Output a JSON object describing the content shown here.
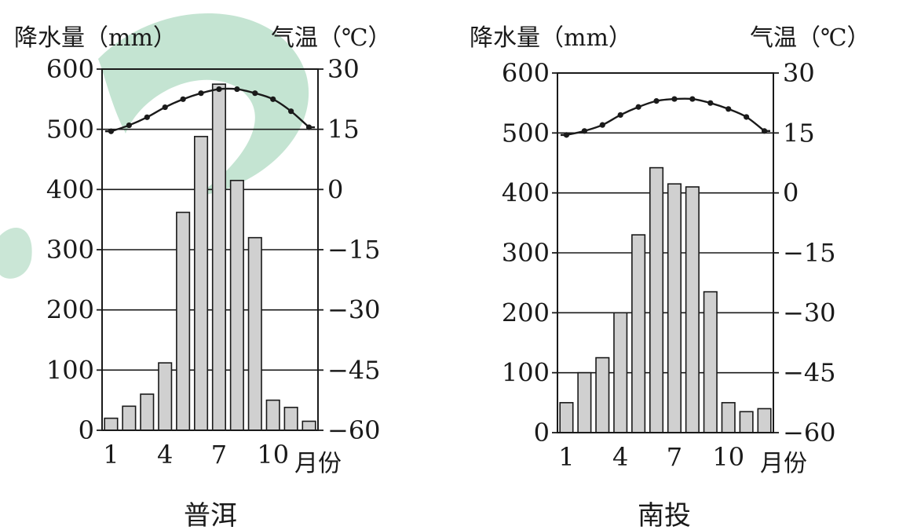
{
  "chart_data": [
    {
      "type": "bar",
      "title": "普洱",
      "y_left_label": "降水量（mm）",
      "y_right_label": "气温（℃）",
      "x_unit_label": "月份",
      "categories": [
        1,
        2,
        3,
        4,
        5,
        6,
        7,
        8,
        9,
        10,
        11,
        12
      ],
      "x_tick_labels": [
        "1",
        "4",
        "7",
        "10"
      ],
      "series": [
        {
          "name": "降水量",
          "kind": "bar",
          "axis": "left",
          "values": [
            20,
            40,
            60,
            112,
            362,
            488,
            575,
            415,
            320,
            50,
            38,
            15
          ]
        },
        {
          "name": "气温",
          "kind": "line",
          "axis": "right",
          "values": [
            14.5,
            16,
            18,
            20.5,
            22.5,
            24,
            25,
            25,
            24,
            22.5,
            19.5,
            15.5
          ]
        }
      ],
      "y_left": {
        "min": 0,
        "max": 600,
        "ticks": [
          "0",
          "100",
          "200",
          "300",
          "400",
          "500",
          "600"
        ]
      },
      "y_right": {
        "min": -60,
        "max": 30,
        "ticks": [
          "-60",
          "-45",
          "-30",
          "-15",
          "0",
          "15",
          "30"
        ]
      },
      "gridlines": [
        100,
        200,
        300,
        400,
        500
      ]
    },
    {
      "type": "bar",
      "title": "南投",
      "y_left_label": "降水量（mm）",
      "y_right_label": "气温（℃）",
      "x_unit_label": "月份",
      "categories": [
        1,
        2,
        3,
        4,
        5,
        6,
        7,
        8,
        9,
        10,
        11,
        12
      ],
      "x_tick_labels": [
        "1",
        "4",
        "7",
        "10"
      ],
      "series": [
        {
          "name": "降水量",
          "kind": "bar",
          "axis": "left",
          "values": [
            50,
            100,
            125,
            200,
            330,
            442,
            415,
            410,
            235,
            50,
            35,
            40
          ]
        },
        {
          "name": "气温",
          "kind": "line",
          "axis": "right",
          "values": [
            14.5,
            15.5,
            17,
            19.5,
            21.5,
            23,
            23.5,
            23.5,
            22.5,
            21,
            19,
            15.5
          ]
        }
      ],
      "y_left": {
        "min": 0,
        "max": 600,
        "ticks": [
          "0",
          "100",
          "200",
          "300",
          "400",
          "500",
          "600"
        ]
      },
      "y_right": {
        "min": -60,
        "max": 30,
        "ticks": [
          "-60",
          "-45",
          "-30",
          "-15",
          "0",
          "15",
          "30"
        ]
      },
      "gridlines": [
        100,
        200,
        300,
        400,
        500
      ]
    }
  ],
  "colors": {
    "bar_fill": "#d0d0d0",
    "ink": "#1a1a1a",
    "watermark": "#2a9d5c"
  }
}
